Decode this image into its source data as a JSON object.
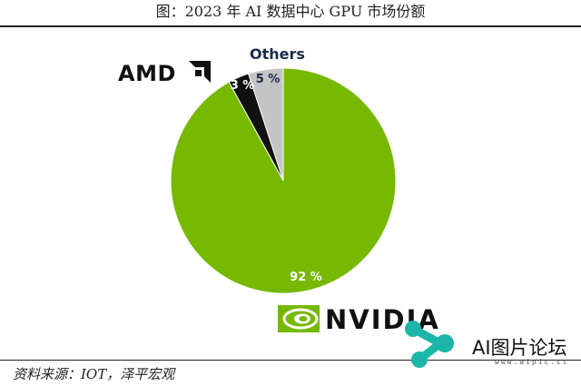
{
  "page": {
    "title": "图：2023 年 AI 数据中心 GPU 市场份额",
    "source": "资料来源：IOT，泽平宏观"
  },
  "chart_data": {
    "type": "pie",
    "title": "图：2023 年 AI 数据中心 GPU 市场份额",
    "slices": [
      {
        "name": "NVIDIA",
        "value": 92,
        "label": "92 %",
        "color": "#76b900"
      },
      {
        "name": "AMD",
        "value": 3,
        "label": "3 %",
        "color": "#111111"
      },
      {
        "name": "Others",
        "value": 5,
        "label": "5 %",
        "color": "#c4c4c4"
      }
    ],
    "brand_labels": {
      "amd": "AMD",
      "nvidia": "NVIDIA",
      "others": "Others"
    }
  },
  "watermark": {
    "text": "AI图片论坛",
    "url": "www.aipic.cc"
  }
}
